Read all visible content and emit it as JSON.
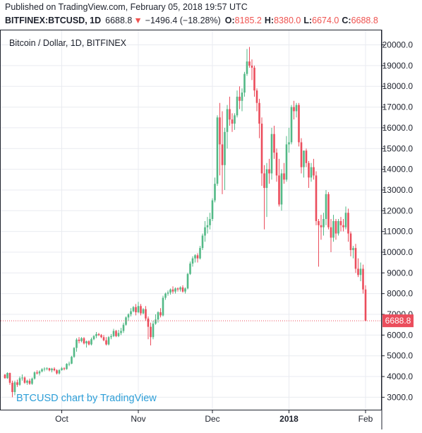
{
  "header": {
    "published": "Published on TradingView.com, February 05, 2018 19:57 UTC",
    "symbol": "BITFINEX:BTCUSD, 1D",
    "last": "6688.8",
    "arrow": "▼",
    "change": "−1496.4 (−18.28%)",
    "o_label": "O:",
    "o_value": "8185.2",
    "h_label": "H:",
    "h_value": "8380.0",
    "l_label": "L:",
    "l_value": "6674.0",
    "c_label": "C:",
    "c_value": "6688.8"
  },
  "chart": {
    "legend_title": "Bitcoin / Dollar, 1D, BITFINEX",
    "watermark": "BTCUSD chart by TradingView",
    "last_price_label": "6688.8"
  },
  "colors": {
    "up": "#53b987",
    "down": "#eb4d5c",
    "grid": "#e9ebf0",
    "axis_text": "#1e222d",
    "watermark": "#2e9fd8",
    "last_price": "#eb4d5c"
  },
  "chart_data": {
    "type": "candlestick",
    "title": "Bitcoin / Dollar, 1D, BITFINEX",
    "xlabel": "",
    "ylabel": "",
    "ylim": [
      2400,
      20700
    ],
    "y_ticks": [
      3000,
      4000,
      5000,
      6000,
      7000,
      8000,
      9000,
      10000,
      11000,
      12000,
      13000,
      14000,
      15000,
      16000,
      17000,
      18000,
      19000,
      20000
    ],
    "y_tick_labels": [
      "3000.0",
      "4000.0",
      "5000.0",
      "6000.0",
      "7000.0",
      "8000.0",
      "9000.0",
      "10000.0",
      "11000.0",
      "12000.0",
      "13000.0",
      "14000.0",
      "15000.0",
      "16000.0",
      "17000.0",
      "18000.0",
      "19000.0",
      "20000.0"
    ],
    "x_ticks": [
      {
        "index": 23,
        "label": "Oct",
        "bold": false
      },
      {
        "index": 54,
        "label": "Nov",
        "bold": false
      },
      {
        "index": 84,
        "label": "Dec",
        "bold": false
      },
      {
        "index": 115,
        "label": "2018",
        "bold": true
      },
      {
        "index": 146,
        "label": "Feb",
        "bold": false
      }
    ],
    "grid": true,
    "last_price": 6688.8,
    "candles": [
      [
        4090,
        4120,
        3900,
        3920
      ],
      [
        3920,
        4200,
        3890,
        4170
      ],
      [
        4170,
        4190,
        3600,
        3700
      ],
      [
        3700,
        3800,
        3000,
        3250
      ],
      [
        3250,
        3800,
        3100,
        3720
      ],
      [
        3720,
        3850,
        3500,
        3600
      ],
      [
        3600,
        4000,
        3550,
        3920
      ],
      [
        3920,
        4100,
        3800,
        3950
      ],
      [
        3950,
        4000,
        3650,
        3700
      ],
      [
        3700,
        3850,
        3600,
        3800
      ],
      [
        3800,
        3900,
        3600,
        3650
      ],
      [
        3650,
        3950,
        3600,
        3900
      ],
      [
        3900,
        4250,
        3850,
        4200
      ],
      [
        4200,
        4300,
        4100,
        4150
      ],
      [
        4150,
        4300,
        4050,
        4250
      ],
      [
        4250,
        4400,
        4200,
        4350
      ],
      [
        4350,
        4450,
        4250,
        4380
      ],
      [
        4380,
        4450,
        4300,
        4400
      ],
      [
        4400,
        4420,
        4250,
        4300
      ],
      [
        4300,
        4420,
        4200,
        4380
      ],
      [
        4380,
        4450,
        4250,
        4300
      ],
      [
        4300,
        4350,
        4100,
        4150
      ],
      [
        4150,
        4360,
        4100,
        4310
      ],
      [
        4310,
        4460,
        4280,
        4400
      ],
      [
        4400,
        4450,
        4300,
        4360
      ],
      [
        4360,
        4640,
        4330,
        4610
      ],
      [
        4610,
        4720,
        4500,
        4620
      ],
      [
        4620,
        5000,
        4600,
        4950
      ],
      [
        4950,
        5420,
        4900,
        5380
      ],
      [
        5380,
        5850,
        5200,
        5780
      ],
      [
        5780,
        5900,
        5600,
        5710
      ],
      [
        5710,
        5900,
        5650,
        5850
      ],
      [
        5850,
        5900,
        5550,
        5600
      ],
      [
        5600,
        5730,
        5400,
        5700
      ],
      [
        5700,
        5750,
        5500,
        5550
      ],
      [
        5550,
        5880,
        5500,
        5800
      ],
      [
        5800,
        6000,
        5750,
        5950
      ],
      [
        5950,
        6150,
        5850,
        6050
      ],
      [
        6050,
        6100,
        5950,
        6000
      ],
      [
        6000,
        6050,
        5850,
        5900
      ],
      [
        5900,
        6000,
        5700,
        5750
      ],
      [
        5750,
        5900,
        5500,
        5550
      ],
      [
        5550,
        5950,
        5500,
        5900
      ],
      [
        5900,
        6050,
        5800,
        5950
      ],
      [
        5950,
        6300,
        5900,
        6200
      ],
      [
        6200,
        6250,
        5900,
        5950
      ],
      [
        5950,
        6250,
        5900,
        6100
      ],
      [
        6100,
        6350,
        6000,
        6200
      ],
      [
        6200,
        6600,
        6100,
        6500
      ],
      [
        6500,
        6900,
        6450,
        6850
      ],
      [
        6850,
        7050,
        6700,
        7000
      ],
      [
        7000,
        7300,
        6900,
        7150
      ],
      [
        7150,
        7400,
        7100,
        7350
      ],
      [
        7350,
        7500,
        6950,
        7100
      ],
      [
        7100,
        7600,
        7050,
        7400
      ],
      [
        7400,
        7500,
        6950,
        7050
      ],
      [
        7050,
        7300,
        7000,
        7250
      ],
      [
        7250,
        7400,
        6700,
        6800
      ],
      [
        6800,
        6900,
        5800,
        6400
      ],
      [
        6400,
        6600,
        5500,
        5900
      ],
      [
        5900,
        6700,
        5800,
        6550
      ],
      [
        6550,
        7000,
        6500,
        6750
      ],
      [
        6750,
        7150,
        6600,
        7100
      ],
      [
        7100,
        7300,
        6850,
        6950
      ],
      [
        6950,
        7900,
        6900,
        7800
      ],
      [
        7800,
        8050,
        7700,
        8000
      ],
      [
        8000,
        8150,
        7900,
        8050
      ],
      [
        8050,
        8250,
        7950,
        8200
      ],
      [
        8200,
        8350,
        8000,
        8100
      ],
      [
        8100,
        8300,
        8000,
        8250
      ],
      [
        8250,
        8300,
        8100,
        8200
      ],
      [
        8200,
        8350,
        8100,
        8300
      ],
      [
        8300,
        8400,
        8050,
        8100
      ],
      [
        8100,
        8300,
        8000,
        8250
      ],
      [
        8250,
        9000,
        8200,
        8950
      ],
      [
        8950,
        9550,
        8900,
        9450
      ],
      [
        9450,
        9800,
        9300,
        9700
      ],
      [
        9700,
        9900,
        9500,
        9850
      ],
      [
        9850,
        9950,
        9500,
        9700
      ],
      [
        9700,
        10300,
        9650,
        10200
      ],
      [
        10200,
        10900,
        10100,
        10800
      ],
      [
        10800,
        11500,
        10500,
        11200
      ],
      [
        11200,
        11700,
        10900,
        11300
      ],
      [
        11300,
        11900,
        11100,
        11600
      ],
      [
        11600,
        12600,
        11500,
        12500
      ],
      [
        12500,
        13600,
        12400,
        13300
      ],
      [
        13300,
        16600,
        13200,
        16500
      ],
      [
        16500,
        17200,
        13700,
        15200
      ],
      [
        15200,
        16800,
        12800,
        14200
      ],
      [
        14200,
        16000,
        13000,
        15800
      ],
      [
        15800,
        17100,
        15000,
        16900
      ],
      [
        16900,
        17500,
        16100,
        16400
      ],
      [
        16400,
        16700,
        15800,
        16200
      ],
      [
        16200,
        16700,
        15900,
        16600
      ],
      [
        16600,
        17800,
        16500,
        17500
      ],
      [
        17500,
        18000,
        16900,
        17300
      ],
      [
        17300,
        17900,
        16800,
        17700
      ],
      [
        17700,
        18700,
        17500,
        18600
      ],
      [
        18600,
        19800,
        18500,
        19200
      ],
      [
        19200,
        19900,
        18900,
        19000
      ],
      [
        19000,
        19300,
        18300,
        18900
      ],
      [
        18900,
        19000,
        17500,
        17800
      ],
      [
        17800,
        17900,
        16800,
        17200
      ],
      [
        17200,
        17400,
        15500,
        16200
      ],
      [
        16200,
        16500,
        13200,
        13800
      ],
      [
        13800,
        14200,
        11100,
        13100
      ],
      [
        13100,
        14300,
        11700,
        14000
      ],
      [
        14000,
        14500,
        13300,
        13800
      ],
      [
        13800,
        16000,
        13500,
        15700
      ],
      [
        15700,
        16100,
        14500,
        14800
      ],
      [
        14800,
        15000,
        13400,
        13700
      ],
      [
        13700,
        14500,
        12200,
        12300
      ],
      [
        12300,
        14000,
        12000,
        13800
      ],
      [
        13800,
        14300,
        13300,
        13500
      ],
      [
        13500,
        15600,
        13400,
        15200
      ],
      [
        15200,
        16000,
        14800,
        15300
      ],
      [
        15300,
        17100,
        15200,
        17000
      ],
      [
        17000,
        17300,
        16400,
        16800
      ],
      [
        16800,
        17200,
        16500,
        17100
      ],
      [
        17100,
        17200,
        15100,
        15300
      ],
      [
        15300,
        15500,
        13800,
        14100
      ],
      [
        14100,
        14900,
        13600,
        14900
      ],
      [
        14900,
        15000,
        14100,
        14300
      ],
      [
        14300,
        14400,
        13100,
        13600
      ],
      [
        13600,
        14300,
        13400,
        14100
      ],
      [
        14100,
        14500,
        13500,
        13700
      ],
      [
        13700,
        13900,
        11300,
        11500
      ],
      [
        11500,
        11600,
        9300,
        11300
      ],
      [
        11300,
        11800,
        10600,
        11200
      ],
      [
        11200,
        11900,
        10800,
        11600
      ],
      [
        11600,
        13000,
        11300,
        12800
      ],
      [
        12800,
        12900,
        11100,
        11200
      ],
      [
        11200,
        11600,
        10000,
        10700
      ],
      [
        10700,
        11800,
        10500,
        11500
      ],
      [
        11500,
        11600,
        10600,
        10900
      ],
      [
        10900,
        11600,
        10800,
        11500
      ],
      [
        11500,
        11700,
        11000,
        11300
      ],
      [
        11300,
        11600,
        11000,
        11200
      ],
      [
        11200,
        12200,
        11100,
        11900
      ],
      [
        11900,
        12100,
        10500,
        10900
      ],
      [
        10900,
        11000,
        9800,
        10100
      ],
      [
        10100,
        10300,
        9700,
        10200
      ],
      [
        10200,
        10400,
        9000,
        9200
      ],
      [
        9200,
        9700,
        8800,
        8900
      ],
      [
        8900,
        9500,
        8600,
        9200
      ],
      [
        9200,
        9400,
        8000,
        8200
      ],
      [
        8200,
        8400,
        6674,
        6689
      ]
    ]
  }
}
